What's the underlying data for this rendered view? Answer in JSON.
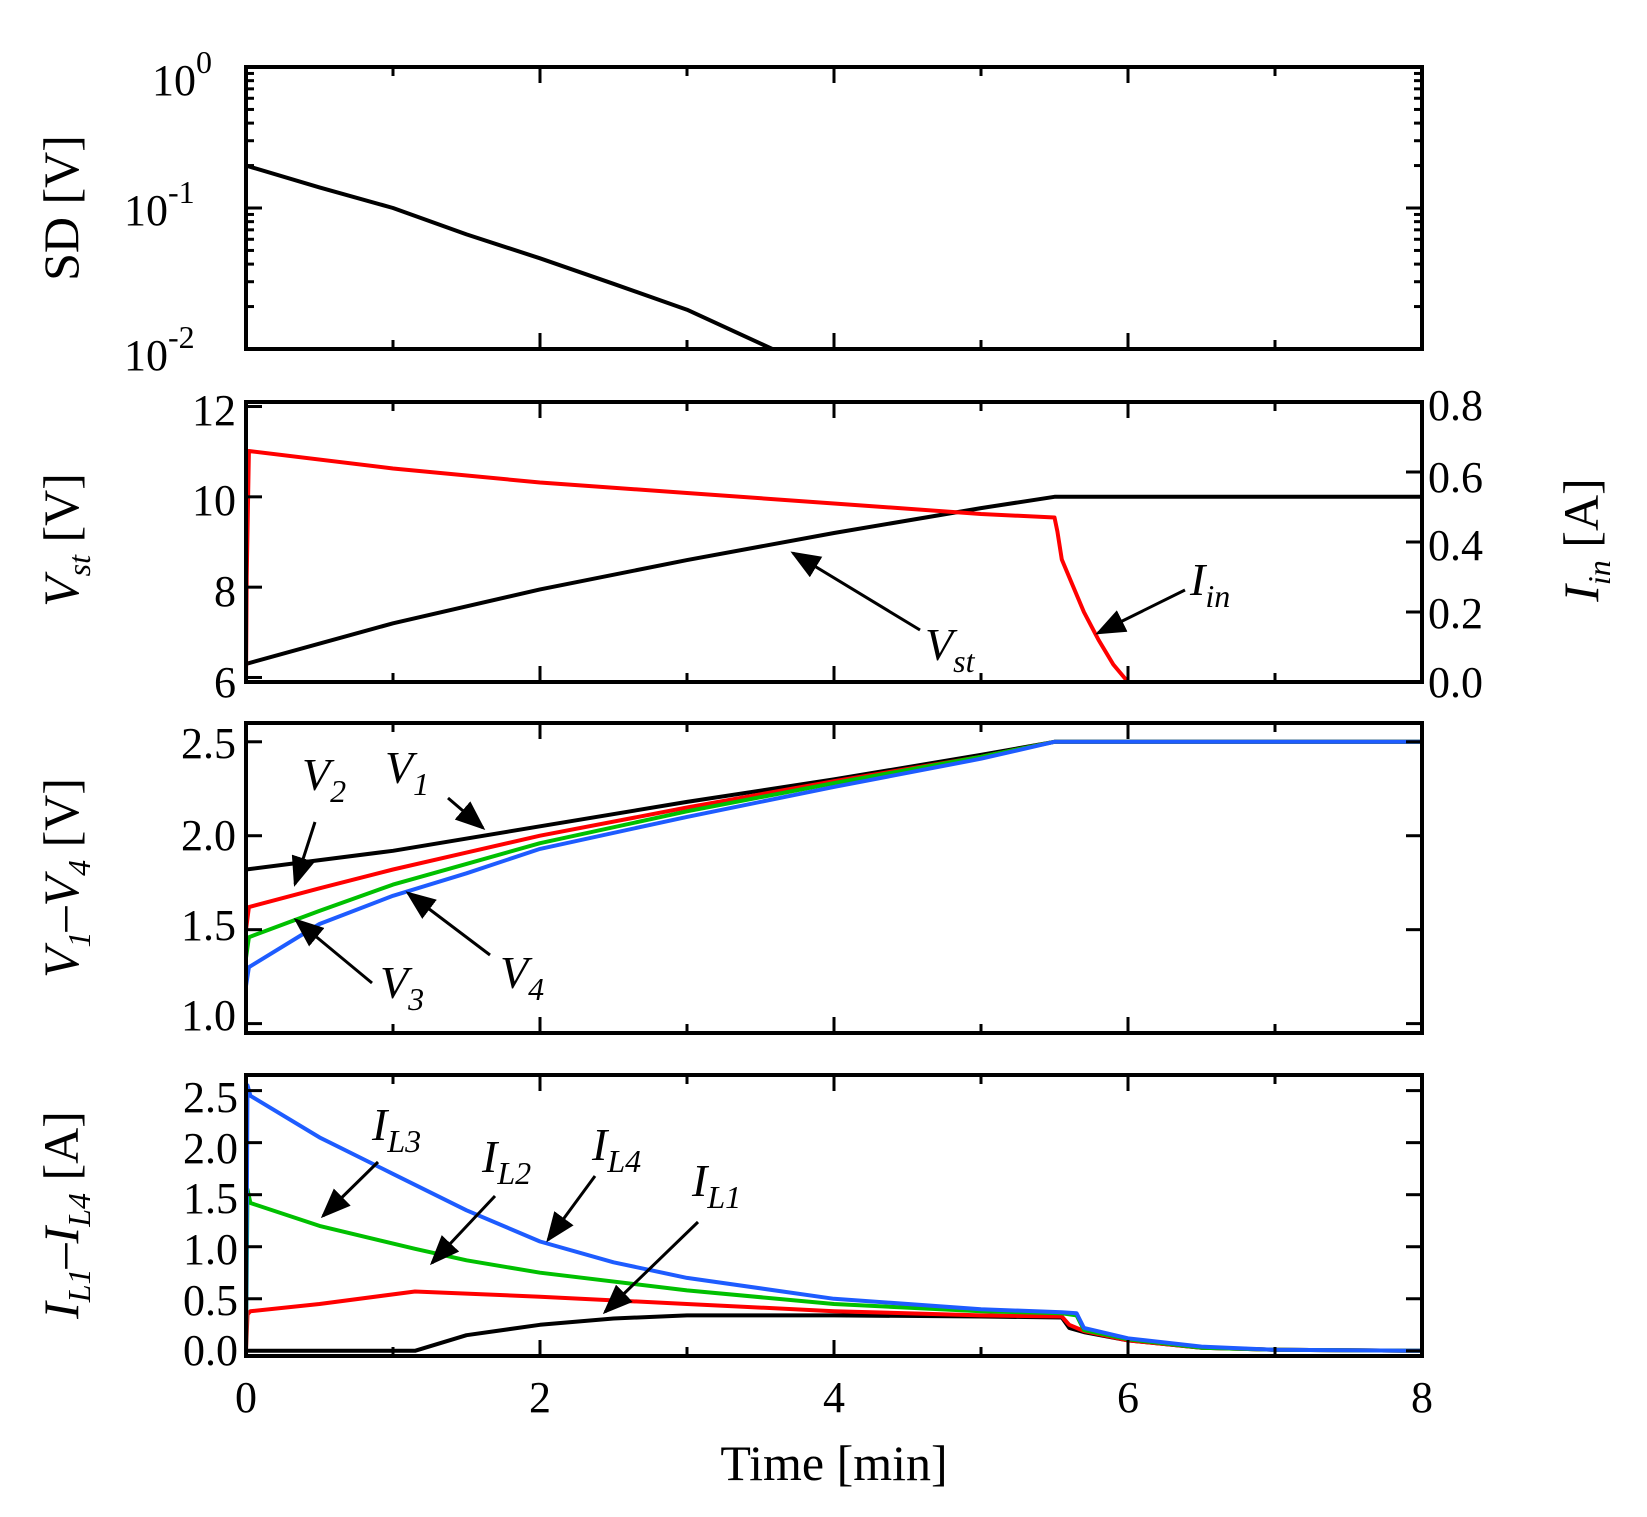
{
  "chart_data": [
    {
      "id": "sd",
      "type": "line",
      "yscale": "log",
      "ylabel": "SD [V]",
      "xlim": [
        0,
        8
      ],
      "ylim": [
        0.01,
        1
      ],
      "yticks": [
        {
          "value": 1,
          "base": "10",
          "exp": "0"
        },
        {
          "value": 0.1,
          "base": "10",
          "exp": "-1"
        },
        {
          "value": 0.01,
          "base": "10",
          "exp": "-2"
        }
      ],
      "series": [
        {
          "name": "SD",
          "color": "#000000",
          "x": [
            0,
            0.5,
            1.0,
            1.5,
            2.0,
            2.5,
            3.0,
            3.58
          ],
          "y": [
            0.2,
            0.14,
            0.1,
            0.065,
            0.044,
            0.029,
            0.019,
            0.01
          ]
        }
      ]
    },
    {
      "id": "vst-iin",
      "type": "line",
      "ylabel": {
        "main": "V",
        "sub": "st",
        "unit": " [V]"
      },
      "ylabel_right": {
        "main": "I",
        "sub": "in",
        "unit": " [A]"
      },
      "xlim": [
        0,
        8
      ],
      "ylim": [
        5.9,
        12.1
      ],
      "yticks": [
        "6",
        "8",
        "10",
        "12"
      ],
      "ylim_right": [
        0,
        0.8
      ],
      "yticks_right": [
        "0.0",
        "0.2",
        "0.4",
        "0.6",
        "0.8"
      ],
      "series": [
        {
          "name": "Vst",
          "color": "#000000",
          "axis": "left",
          "x": [
            0,
            1,
            2,
            3,
            4,
            5,
            5.5,
            8
          ],
          "y": [
            6.3,
            7.2,
            7.95,
            8.6,
            9.2,
            9.75,
            10.0,
            10.0
          ]
        },
        {
          "name": "Iin",
          "color": "#ff0000",
          "axis": "right",
          "x": [
            0,
            0.005,
            0.02,
            1,
            2,
            3,
            4,
            5,
            5.5,
            5.52,
            5.55,
            5.62,
            5.7,
            5.8,
            5.9,
            6.0,
            8
          ],
          "y": [
            0.0,
            0.3,
            0.66,
            0.61,
            0.57,
            0.54,
            0.51,
            0.48,
            0.47,
            0.43,
            0.35,
            0.28,
            0.2,
            0.12,
            0.05,
            0.0,
            0.0
          ]
        }
      ],
      "annotations": [
        {
          "main": "V",
          "sub": "st"
        },
        {
          "main": "I",
          "sub": "in"
        }
      ]
    },
    {
      "id": "v1-v4",
      "type": "line",
      "ylabel": {
        "m1": "V",
        "s1": "1",
        "dash": "–",
        "m2": "V",
        "s2": "4",
        "unit": " [V]"
      },
      "xlim": [
        0,
        8
      ],
      "ylim": [
        0.95,
        2.6
      ],
      "yticks": [
        "1.0",
        "1.5",
        "2.0",
        "2.5"
      ],
      "series": [
        {
          "name": "V1",
          "color": "#000000",
          "x": [
            0,
            1,
            2,
            3,
            4,
            5,
            5.5,
            8
          ],
          "y": [
            1.82,
            1.92,
            2.05,
            2.18,
            2.3,
            2.43,
            2.5,
            2.5
          ]
        },
        {
          "name": "V2",
          "color": "#ff0000",
          "x": [
            0,
            0.02,
            0.5,
            1,
            1.5,
            2,
            3,
            4,
            5,
            5.5,
            8
          ],
          "y": [
            1.5,
            1.62,
            1.72,
            1.82,
            1.91,
            2.0,
            2.15,
            2.29,
            2.42,
            2.5,
            2.5
          ]
        },
        {
          "name": "V3",
          "color": "#00c000",
          "x": [
            0,
            0.02,
            0.5,
            1,
            1.5,
            2,
            3,
            4,
            5,
            5.5,
            8
          ],
          "y": [
            1.35,
            1.46,
            1.6,
            1.74,
            1.85,
            1.96,
            2.13,
            2.28,
            2.42,
            2.5,
            2.5
          ]
        },
        {
          "name": "V4",
          "color": "#1e5cff",
          "x": [
            0,
            0.02,
            0.5,
            1,
            1.5,
            2,
            3,
            4,
            5,
            5.5,
            8
          ],
          "y": [
            1.2,
            1.3,
            1.53,
            1.68,
            1.8,
            1.93,
            2.1,
            2.26,
            2.41,
            2.5,
            2.5
          ]
        }
      ],
      "annotations": [
        {
          "main": "V",
          "sub": "1"
        },
        {
          "main": "V",
          "sub": "2"
        },
        {
          "main": "V",
          "sub": "3"
        },
        {
          "main": "V",
          "sub": "4"
        }
      ]
    },
    {
      "id": "il1-il4",
      "type": "line",
      "xlabel": "Time [min]",
      "ylabel": {
        "m1": "I",
        "s1": "L1",
        "dash": "–",
        "m2": "I",
        "s2": "L4",
        "unit": " [A]"
      },
      "xlim": [
        0,
        8
      ],
      "xticks": [
        "0",
        "2",
        "4",
        "6",
        "8"
      ],
      "ylim": [
        -0.05,
        2.65
      ],
      "yticks": [
        "0.0",
        "0.5",
        "1.0",
        "1.5",
        "2.0",
        "2.5"
      ],
      "series": [
        {
          "name": "IL1",
          "color": "#000000",
          "x": [
            0,
            1.15,
            1.5,
            2,
            2.5,
            3,
            4,
            5,
            5.55,
            5.6,
            5.7,
            6,
            6.5,
            7,
            8
          ],
          "y": [
            0.0,
            0.0,
            0.15,
            0.25,
            0.31,
            0.34,
            0.34,
            0.33,
            0.32,
            0.22,
            0.18,
            0.1,
            0.03,
            0.01,
            0.0
          ]
        },
        {
          "name": "IL2",
          "color": "#ff0000",
          "x": [
            0,
            0.01,
            0.03,
            0.5,
            1.15,
            1.5,
            2,
            3,
            4,
            5,
            5.55,
            5.6,
            5.7,
            6,
            6.5,
            7,
            8
          ],
          "y": [
            0.0,
            0.35,
            0.38,
            0.45,
            0.57,
            0.55,
            0.52,
            0.45,
            0.38,
            0.34,
            0.33,
            0.25,
            0.19,
            0.1,
            0.03,
            0.01,
            0.0
          ]
        },
        {
          "name": "IL3",
          "color": "#00c000",
          "x": [
            0,
            0.01,
            0.03,
            0.5,
            1.15,
            1.5,
            2,
            3,
            4,
            5,
            5.55,
            5.65,
            5.7,
            6,
            6.5,
            7,
            8
          ],
          "y": [
            0.0,
            1.55,
            1.42,
            1.2,
            0.98,
            0.87,
            0.75,
            0.58,
            0.45,
            0.38,
            0.36,
            0.34,
            0.2,
            0.11,
            0.03,
            0.01,
            0.0
          ]
        },
        {
          "name": "IL4",
          "color": "#1e5cff",
          "x": [
            0,
            0.01,
            0.03,
            0.5,
            1,
            1.5,
            2,
            2.5,
            3,
            4,
            5,
            5.55,
            5.65,
            5.7,
            6,
            6.5,
            7,
            8
          ],
          "y": [
            0.0,
            2.55,
            2.45,
            2.05,
            1.7,
            1.35,
            1.05,
            0.85,
            0.7,
            0.5,
            0.4,
            0.37,
            0.36,
            0.22,
            0.12,
            0.04,
            0.01,
            0.0
          ]
        }
      ],
      "annotations": [
        {
          "main": "I",
          "sub": "L3"
        },
        {
          "main": "I",
          "sub": "L2"
        },
        {
          "main": "I",
          "sub": "L4"
        },
        {
          "main": "I",
          "sub": "L1"
        }
      ]
    }
  ]
}
